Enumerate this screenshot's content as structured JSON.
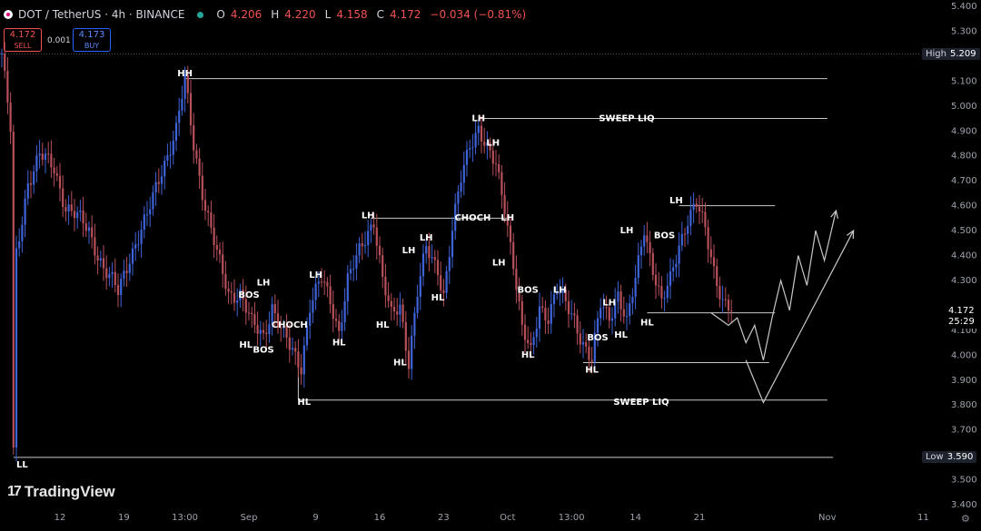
{
  "header": {
    "symbol": "DOT / TetherUS · 4h · BINANCE",
    "o_label": "O",
    "o_value": "4.206",
    "h_label": "H",
    "h_value": "4.220",
    "l_label": "L",
    "l_value": "4.158",
    "c_label": "C",
    "c_value": "4.172",
    "change": "−0.034 (−0.81%)"
  },
  "trade": {
    "sell_price": "4.172",
    "sell_label": "SELL",
    "spread": "0.001",
    "buy_price": "4.173",
    "buy_label": "BUY"
  },
  "branding": {
    "logo_mark": "17",
    "logo_text": "TradingView"
  },
  "tags": {
    "high_label": "High",
    "high_value": "5.209",
    "low_label": "Low",
    "low_value": "3.590",
    "current_price": "4.172",
    "countdown": "25:29"
  },
  "colors": {
    "up": "#3f63d9",
    "down": "#b8505a",
    "annotation": "#c8c8c8",
    "background": "#000000"
  },
  "chart_data": {
    "type": "candlestick",
    "ylim": [
      3.4,
      5.4
    ],
    "y_ticks": [
      "5.400",
      "5.300",
      "5.200",
      "5.100",
      "5.000",
      "4.900",
      "4.800",
      "4.700",
      "4.600",
      "4.500",
      "4.400",
      "4.300",
      "4.200",
      "4.100",
      "4.000",
      "3.900",
      "3.800",
      "3.700",
      "3.600",
      "3.500",
      "3.400"
    ],
    "x_ticks": [
      {
        "label": "12",
        "i": 20
      },
      {
        "label": "19",
        "i": 42
      },
      {
        "label": "13:00",
        "i": 63
      },
      {
        "label": "Sep",
        "i": 85
      },
      {
        "label": "9",
        "i": 108
      },
      {
        "label": "16",
        "i": 130
      },
      {
        "label": "23",
        "i": 152
      },
      {
        "label": "Oct",
        "i": 174
      },
      {
        "label": "13:00",
        "i": 196
      },
      {
        "label": "14",
        "i": 218
      },
      {
        "label": "21",
        "i": 240
      },
      {
        "label": "Nov",
        "i": 284
      },
      {
        "label": "11",
        "i": 317
      }
    ],
    "price_path": [
      [
        0,
        5.21
      ],
      [
        3,
        4.9
      ],
      [
        4,
        3.6
      ],
      [
        5,
        4.4
      ],
      [
        9,
        4.7
      ],
      [
        13,
        4.8
      ],
      [
        18,
        4.75
      ],
      [
        22,
        4.6
      ],
      [
        26,
        4.55
      ],
      [
        30,
        4.5
      ],
      [
        35,
        4.35
      ],
      [
        40,
        4.25
      ],
      [
        44,
        4.4
      ],
      [
        50,
        4.55
      ],
      [
        55,
        4.75
      ],
      [
        60,
        4.9
      ],
      [
        63,
        5.1
      ],
      [
        66,
        4.85
      ],
      [
        70,
        4.6
      ],
      [
        74,
        4.4
      ],
      [
        78,
        4.25
      ],
      [
        82,
        4.25
      ],
      [
        86,
        4.12
      ],
      [
        90,
        4.08
      ],
      [
        93,
        4.2
      ],
      [
        96,
        4.1
      ],
      [
        99,
        4.03
      ],
      [
        103,
        3.96
      ],
      [
        106,
        4.2
      ],
      [
        110,
        4.3
      ],
      [
        113,
        4.22
      ],
      [
        116,
        4.1
      ],
      [
        119,
        4.3
      ],
      [
        122,
        4.38
      ],
      [
        126,
        4.5
      ],
      [
        128,
        4.55
      ],
      [
        131,
        4.3
      ],
      [
        134,
        4.15
      ],
      [
        137,
        4.2
      ],
      [
        140,
        3.98
      ],
      [
        143,
        4.25
      ],
      [
        146,
        4.42
      ],
      [
        150,
        4.35
      ],
      [
        152,
        4.25
      ],
      [
        155,
        4.5
      ],
      [
        158,
        4.7
      ],
      [
        161,
        4.85
      ],
      [
        164,
        4.92
      ],
      [
        167,
        4.82
      ],
      [
        170,
        4.75
      ],
      [
        173,
        4.6
      ],
      [
        176,
        4.38
      ],
      [
        179,
        4.1
      ],
      [
        182,
        4.0
      ],
      [
        185,
        4.2
      ],
      [
        188,
        4.16
      ],
      [
        191,
        4.26
      ],
      [
        194,
        4.2
      ],
      [
        197,
        4.15
      ],
      [
        200,
        4.05
      ],
      [
        203,
        3.97
      ],
      [
        206,
        4.2
      ],
      [
        209,
        4.16
      ],
      [
        212,
        4.25
      ],
      [
        215,
        4.12
      ],
      [
        218,
        4.3
      ],
      [
        221,
        4.52
      ],
      [
        224,
        4.35
      ],
      [
        227,
        4.2
      ],
      [
        230,
        4.3
      ],
      [
        233,
        4.45
      ],
      [
        236,
        4.55
      ],
      [
        239,
        4.6
      ],
      [
        242,
        4.5
      ],
      [
        245,
        4.35
      ],
      [
        248,
        4.22
      ],
      [
        251,
        4.172
      ]
    ],
    "annotations": [
      {
        "text": "HH",
        "price": 5.12,
        "i": 63
      },
      {
        "text": "LH",
        "price": 4.94,
        "i": 164
      },
      {
        "text": "SWEEP LIQ",
        "price": 4.94,
        "i": 215
      },
      {
        "text": "LH",
        "price": 4.84,
        "i": 169
      },
      {
        "text": "LH",
        "price": 4.61,
        "i": 232
      },
      {
        "text": "LH",
        "price": 4.55,
        "i": 126
      },
      {
        "text": "CHOCH",
        "price": 4.54,
        "i": 162
      },
      {
        "text": "LH",
        "price": 4.54,
        "i": 174
      },
      {
        "text": "LH",
        "price": 4.49,
        "i": 215
      },
      {
        "text": "BOS",
        "price": 4.47,
        "i": 228
      },
      {
        "text": "LH",
        "price": 4.46,
        "i": 146
      },
      {
        "text": "LH",
        "price": 4.41,
        "i": 140
      },
      {
        "text": "LH",
        "price": 4.36,
        "i": 171
      },
      {
        "text": "LH",
        "price": 4.31,
        "i": 108
      },
      {
        "text": "LH",
        "price": 4.28,
        "i": 90
      },
      {
        "text": "BOS",
        "price": 4.25,
        "i": 181
      },
      {
        "text": "LH",
        "price": 4.25,
        "i": 192
      },
      {
        "text": "BOS",
        "price": 4.23,
        "i": 85
      },
      {
        "text": "LH",
        "price": 4.2,
        "i": 209
      },
      {
        "text": "HL",
        "price": 4.22,
        "i": 150
      },
      {
        "text": "HL",
        "price": 4.12,
        "i": 222
      },
      {
        "text": "CHOCH",
        "price": 4.11,
        "i": 99
      },
      {
        "text": "HL",
        "price": 4.11,
        "i": 131
      },
      {
        "text": "BOS",
        "price": 4.06,
        "i": 205
      },
      {
        "text": "HL",
        "price": 4.07,
        "i": 213
      },
      {
        "text": "HL",
        "price": 4.04,
        "i": 116
      },
      {
        "text": "HL",
        "price": 4.03,
        "i": 84
      },
      {
        "text": "BOS",
        "price": 4.01,
        "i": 90
      },
      {
        "text": "HL",
        "price": 3.99,
        "i": 181
      },
      {
        "text": "HL",
        "price": 3.96,
        "i": 137
      },
      {
        "text": "HL",
        "price": 3.93,
        "i": 203
      },
      {
        "text": "HL",
        "price": 3.8,
        "i": 104
      },
      {
        "text": "SWEEP LIQ",
        "price": 3.8,
        "i": 220
      },
      {
        "text": "LL",
        "price": 3.55,
        "i": 7
      }
    ],
    "levels": [
      {
        "name": "hh-level",
        "price": 5.11,
        "i0": 63,
        "i1": 284
      },
      {
        "name": "sweep-high-level",
        "price": 4.95,
        "i0": 164,
        "i1": 284
      },
      {
        "name": "lh-right-level",
        "price": 4.6,
        "i0": 233,
        "i1": 266
      },
      {
        "name": "choch-mid-level",
        "price": 4.55,
        "i0": 127,
        "i1": 174
      },
      {
        "name": "hl-right-level",
        "price": 4.17,
        "i0": 222,
        "i1": 266
      },
      {
        "name": "hl-low-level",
        "price": 3.97,
        "i0": 200,
        "i1": 264
      },
      {
        "name": "sweep-low-level",
        "price": 3.82,
        "i0": 102,
        "i1": 284
      },
      {
        "name": "ll-level",
        "price": 3.59,
        "i0": 4,
        "i1": 286
      }
    ],
    "projection": {
      "path_a": [
        [
          244,
          4.17
        ],
        [
          250,
          4.12
        ],
        [
          253,
          4.15
        ],
        [
          256,
          4.05
        ],
        [
          259,
          4.12
        ],
        [
          262,
          3.98
        ],
        [
          265,
          4.15
        ],
        [
          268,
          4.3
        ],
        [
          271,
          4.18
        ],
        [
          274,
          4.4
        ],
        [
          277,
          4.28
        ],
        [
          280,
          4.5
        ],
        [
          283,
          4.38
        ],
        [
          287,
          4.58
        ]
      ],
      "path_b": [
        [
          256,
          3.98
        ],
        [
          262,
          3.81
        ],
        [
          293,
          4.5
        ]
      ]
    }
  }
}
